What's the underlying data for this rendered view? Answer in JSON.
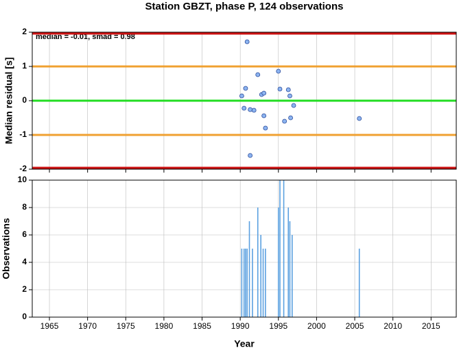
{
  "chart_data": [
    {
      "type": "scatter",
      "title": "Station GBZT, phase P, 124 observations",
      "ylabel": "Median residual [s]",
      "annotation": "median = -0.01, smad = 0.98",
      "x": [
        1990.9,
        1990.2,
        1990.7,
        1992.3,
        1995.0,
        1992.8,
        1993.1,
        1990.5,
        1991.3,
        1991.8,
        1995.2,
        1996.3,
        1996.5,
        1997.0,
        1993.1,
        1993.3,
        1995.8,
        1996.6,
        2005.6,
        1991.3
      ],
      "values": [
        1.72,
        0.14,
        0.36,
        0.76,
        0.86,
        0.18,
        0.22,
        -0.22,
        -0.26,
        -0.28,
        0.34,
        0.32,
        0.14,
        -0.14,
        -0.44,
        -0.8,
        -0.6,
        -0.5,
        -0.52,
        -1.6
      ],
      "color": "#8cb4f0",
      "hlines": [
        {
          "value": 1.96,
          "color": "#cc1111"
        },
        {
          "value": 1,
          "color": "#f0a030"
        },
        {
          "value": 0,
          "color": "#22dd22"
        },
        {
          "value": -1,
          "color": "#f0a030"
        },
        {
          "value": -1.96,
          "color": "#cc1111"
        }
      ],
      "xlim": [
        1962.75,
        2018.3
      ],
      "xticks": [
        1965,
        1970,
        1975,
        1980,
        1985,
        1990,
        1995,
        2000,
        2005,
        2010,
        2015
      ],
      "ylim": [
        -2,
        2
      ],
      "yticks": [
        2,
        1,
        0,
        -1,
        -2
      ],
      "grid": true
    },
    {
      "type": "bar",
      "ylabel": "Observations",
      "xlabel": "Year",
      "x": [
        1990.2,
        1990.5,
        1990.7,
        1990.9,
        1991.2,
        1991.6,
        1992.3,
        1992.7,
        1993.0,
        1993.3,
        1995.0,
        1995.2,
        1995.7,
        1996.3,
        1996.5,
        1996.8,
        2005.6
      ],
      "values": [
        5,
        5,
        5,
        5,
        7,
        5,
        8,
        6,
        5,
        5,
        8,
        10,
        10,
        8,
        7,
        6,
        5
      ],
      "color": "#5aa0e0",
      "xlim": [
        1962.75,
        2018.3
      ],
      "xticks": [
        1965,
        1970,
        1975,
        1980,
        1985,
        1990,
        1995,
        2000,
        2005,
        2010,
        2015
      ],
      "ylim": [
        0,
        10
      ],
      "yticks": [
        0,
        2,
        4,
        6,
        8,
        10
      ],
      "grid": true
    }
  ]
}
